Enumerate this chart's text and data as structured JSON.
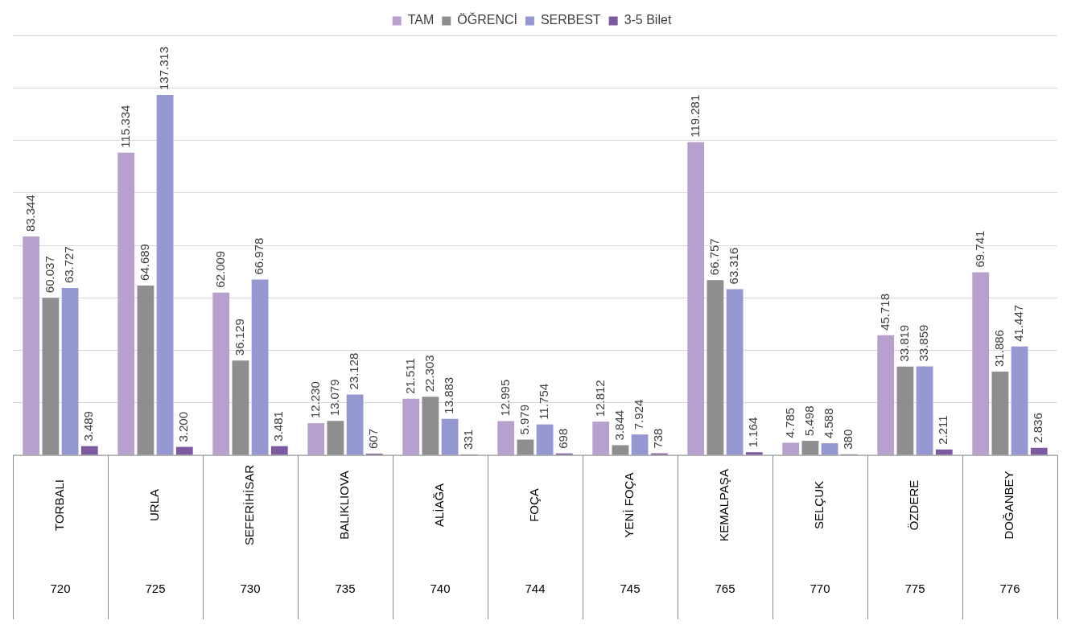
{
  "chart_data": {
    "type": "bar",
    "categories": [
      "TORBALI",
      "URLA",
      "SEFERİHİSAR",
      "BALIKLIOVA",
      "ALİAĞA",
      "FOÇA",
      "YENİ FOÇA",
      "KEMALPAŞA",
      "SELÇUK",
      "ÖZDERE",
      "DOĞANBEY"
    ],
    "series": [
      {
        "name": "TAM",
        "color": "#b79fce",
        "values": [
          83344,
          115334,
          62009,
          12230,
          21511,
          12995,
          12812,
          119281,
          4785,
          45718,
          69741
        ],
        "value_labels": [
          "83.344",
          "115.334",
          "62.009",
          "12.230",
          "21.511",
          "12.995",
          "12.812",
          "119.281",
          "4.785",
          "45.718",
          "69.741"
        ]
      },
      {
        "name": "ÖĞRENCİ",
        "color": "#8e8e8e",
        "values": [
          60037,
          64689,
          36129,
          13079,
          22303,
          5979,
          3844,
          66757,
          5498,
          33819,
          31886
        ],
        "value_labels": [
          "60.037",
          "64.689",
          "36.129",
          "13.079",
          "22.303",
          "5.979",
          "3.844",
          "66.757",
          "5.498",
          "33.819",
          "31.886"
        ]
      },
      {
        "name": "SERBEST",
        "color": "#9598d0",
        "values": [
          63727,
          137313,
          66978,
          23128,
          13883,
          11754,
          7924,
          63316,
          4588,
          33859,
          41447
        ],
        "value_labels": [
          "63.727",
          "137.313",
          "66.978",
          "23.128",
          "13.883",
          "11.754",
          "7.924",
          "63.316",
          "4.588",
          "33.859",
          "41.447"
        ]
      },
      {
        "name": "3-5 Bilet",
        "color": "#7d5a9f",
        "values": [
          3489,
          3200,
          3481,
          607,
          331,
          698,
          738,
          1164,
          380,
          2211,
          2836
        ],
        "value_labels": [
          "3.489",
          "3.200",
          "3.481",
          "607",
          "331",
          "698",
          "738",
          "1.164",
          "380",
          "2.211",
          "2.836"
        ]
      }
    ],
    "annotations": [
      "720",
      "725",
      "730",
      "735",
      "740",
      "744",
      "745",
      "765",
      "770",
      "775",
      "776"
    ],
    "ylim": [
      0,
      160000
    ],
    "yticks": [
      {
        "value": 0,
        "label": null
      },
      {
        "value": 20000,
        "label": null
      },
      {
        "value": 40000,
        "label": null
      },
      {
        "value": 60000,
        "label": null
      },
      {
        "value": 80000,
        "label": null
      },
      {
        "value": 100000,
        "label": null
      },
      {
        "value": 120000,
        "label": null
      },
      {
        "value": 140000,
        "label": null
      },
      {
        "value": 160000,
        "label": null
      }
    ],
    "grid": "y",
    "legend": "top"
  }
}
